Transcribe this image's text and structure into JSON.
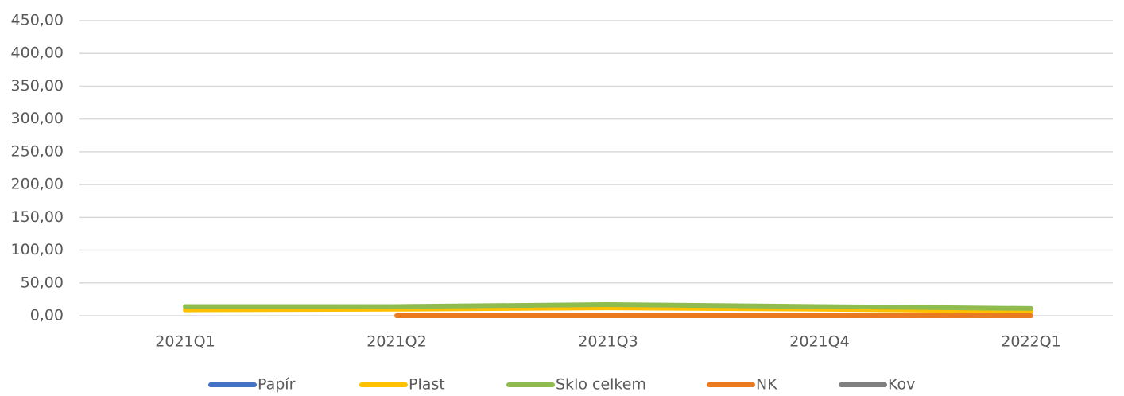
{
  "chart_data": {
    "type": "line",
    "categories": [
      "2021Q1",
      "2021Q2",
      "2021Q3",
      "2021Q4",
      "2022Q1"
    ],
    "series": [
      {
        "name": "Papír",
        "color": "#4472c4",
        "values": [
          null,
          null,
          null,
          null,
          null
        ]
      },
      {
        "name": "Plast",
        "color": "#ffc000",
        "values": [
          9,
          10,
          12,
          10,
          7
        ]
      },
      {
        "name": "Sklo celkem",
        "color": "#8fbc4f",
        "values": [
          14,
          14,
          17,
          14,
          11
        ]
      },
      {
        "name": "NK",
        "color": "#e97a1f",
        "values": [
          null,
          0,
          0,
          0,
          0
        ]
      },
      {
        "name": "Kov",
        "color": "#808080",
        "values": [
          null,
          null,
          null,
          null,
          null
        ]
      }
    ],
    "ylim": [
      0,
      450
    ],
    "yticks": [
      {
        "value": 0,
        "label": "0,00"
      },
      {
        "value": 50,
        "label": "50,00"
      },
      {
        "value": 100,
        "label": "100,00"
      },
      {
        "value": 150,
        "label": "150,00"
      },
      {
        "value": 200,
        "label": "200,00"
      },
      {
        "value": 250,
        "label": "250,00"
      },
      {
        "value": 300,
        "label": "300,00"
      },
      {
        "value": 350,
        "label": "350,00"
      },
      {
        "value": 400,
        "label": "400,00"
      },
      {
        "value": 450,
        "label": "450,00"
      }
    ],
    "grid": true,
    "legend": "bottom"
  }
}
